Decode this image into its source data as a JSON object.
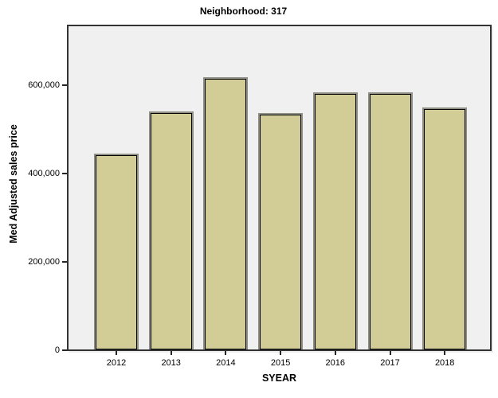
{
  "title": "Neighborhood: 317",
  "chart_data": {
    "type": "bar",
    "title": "Neighborhood: 317",
    "xlabel": "SYEAR",
    "ylabel": "Med Adjusted sales price",
    "categories": [
      "2012",
      "2013",
      "2014",
      "2015",
      "2016",
      "2017",
      "2018"
    ],
    "values": [
      440000,
      536000,
      612000,
      532000,
      578000,
      578000,
      544000
    ],
    "ylim": [
      0,
      738000
    ],
    "yticks": [
      0,
      200000,
      400000,
      600000
    ],
    "ytick_labels": [
      "0",
      "200,000",
      "400,000",
      "600,000"
    ],
    "grid": false,
    "legend": "none",
    "colors": {
      "bar_fill": "#D2CD96",
      "bar_border": "#000000",
      "bar_outline": "#8F8F86",
      "plot_background": "#F0F0F0",
      "frame_border": "#333333",
      "page_background": "#FFFFFF",
      "text": "#000000"
    }
  }
}
